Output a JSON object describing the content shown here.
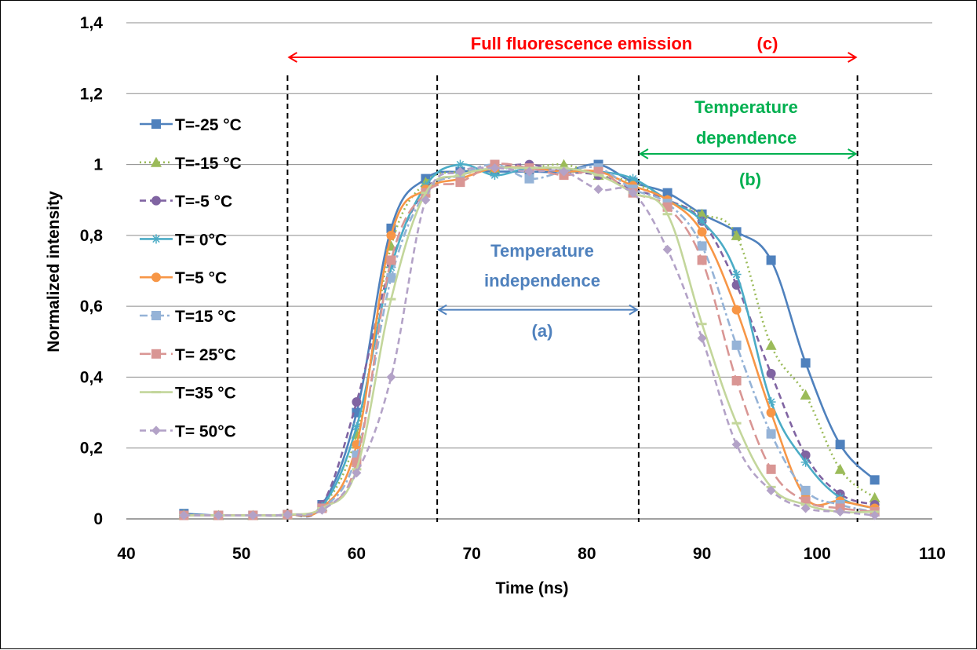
{
  "chart_data": {
    "type": "line",
    "title": "",
    "xlabel": "Time (ns)",
    "ylabel": "Normalized intensity",
    "xlim": [
      40,
      110
    ],
    "ylim": [
      0,
      1.4
    ],
    "x_ticks": [
      "40",
      "50",
      "60",
      "70",
      "80",
      "90",
      "100",
      "110"
    ],
    "y_ticks": [
      "0",
      "0,2",
      "0,4",
      "0,6",
      "0,8",
      "1",
      "1,2",
      "1,4"
    ],
    "grid": "horizontal",
    "legend_position": "left",
    "x": [
      45,
      48,
      51,
      54,
      57,
      60,
      63,
      66,
      69,
      72,
      75,
      78,
      81,
      84,
      87,
      90,
      93,
      96,
      99,
      102,
      105
    ],
    "series": [
      {
        "name": "T=-25 °C",
        "color": "#4F81BD",
        "marker": "square",
        "dash": "solid",
        "values": [
          0.015,
          0.01,
          0.01,
          0.012,
          0.04,
          0.3,
          0.82,
          0.96,
          0.98,
          0.98,
          0.98,
          0.98,
          1.0,
          0.95,
          0.92,
          0.86,
          0.81,
          0.73,
          0.44,
          0.21,
          0.11
        ]
      },
      {
        "name": "T=-15 °C",
        "color": "#9BBB59",
        "marker": "triangle",
        "dash": "dot",
        "values": [
          0.012,
          0.01,
          0.01,
          0.012,
          0.035,
          0.24,
          0.77,
          0.95,
          0.98,
          0.99,
          0.99,
          1.0,
          0.97,
          0.95,
          0.9,
          0.86,
          0.8,
          0.49,
          0.35,
          0.14,
          0.06
        ]
      },
      {
        "name": "T=-5 °C",
        "color": "#8064A2",
        "marker": "circle",
        "dash": "dash",
        "values": [
          0.01,
          0.01,
          0.01,
          0.012,
          0.04,
          0.33,
          0.72,
          0.93,
          0.97,
          0.99,
          1.0,
          0.98,
          0.97,
          0.93,
          0.9,
          0.84,
          0.66,
          0.41,
          0.18,
          0.07,
          0.04
        ]
      },
      {
        "name": "T= 0°C",
        "color": "#4BACC6",
        "marker": "star",
        "dash": "solid",
        "values": [
          0.01,
          0.01,
          0.01,
          0.012,
          0.035,
          0.26,
          0.71,
          0.94,
          1.0,
          0.97,
          0.99,
          0.98,
          0.98,
          0.96,
          0.9,
          0.84,
          0.69,
          0.33,
          0.16,
          0.06,
          0.03
        ]
      },
      {
        "name": "T=5 °C",
        "color": "#F79646",
        "marker": "circle",
        "dash": "solid",
        "values": [
          0.01,
          0.01,
          0.01,
          0.012,
          0.03,
          0.21,
          0.8,
          0.93,
          0.96,
          0.99,
          0.99,
          0.98,
          0.98,
          0.94,
          0.9,
          0.81,
          0.59,
          0.3,
          0.06,
          0.05,
          0.03
        ]
      },
      {
        "name": "T=15 °C",
        "color": "#95B3D7",
        "marker": "square",
        "dash": "dashdot",
        "values": [
          0.01,
          0.01,
          0.01,
          0.012,
          0.03,
          0.18,
          0.68,
          0.92,
          0.97,
          1.0,
          0.96,
          0.98,
          0.99,
          0.93,
          0.89,
          0.77,
          0.49,
          0.24,
          0.08,
          0.04,
          0.02
        ]
      },
      {
        "name": "T= 25°C",
        "color": "#D99694",
        "marker": "square",
        "dash": "longdash",
        "values": [
          0.01,
          0.01,
          0.01,
          0.012,
          0.03,
          0.16,
          0.73,
          0.92,
          0.95,
          1.0,
          0.99,
          0.97,
          0.98,
          0.92,
          0.88,
          0.73,
          0.39,
          0.14,
          0.05,
          0.03,
          0.02
        ]
      },
      {
        "name": "T=35 °C",
        "color": "#C3D69B",
        "marker": "dash",
        "dash": "solid",
        "values": [
          0.01,
          0.01,
          0.01,
          0.012,
          0.03,
          0.14,
          0.62,
          0.92,
          0.97,
          0.99,
          0.99,
          0.99,
          0.97,
          0.92,
          0.86,
          0.55,
          0.27,
          0.09,
          0.04,
          0.02,
          0.02
        ]
      },
      {
        "name": "T= 50°C",
        "color": "#B3A2C7",
        "marker": "diamond",
        "dash": "dash",
        "values": [
          0.01,
          0.01,
          0.01,
          0.012,
          0.025,
          0.13,
          0.4,
          0.9,
          0.98,
          0.99,
          0.98,
          0.98,
          0.93,
          0.92,
          0.76,
          0.51,
          0.21,
          0.08,
          0.03,
          0.02,
          0.01
        ]
      }
    ],
    "vlines": [
      54,
      67,
      84.5,
      103.5
    ],
    "annotations": [
      {
        "id": "full",
        "text": "Full fluorescence emission",
        "label": "(c)",
        "color": "#FF0000",
        "x_from": 54,
        "x_to": 103.5,
        "y": 1.3
      },
      {
        "id": "dep",
        "text1": "Temperature",
        "text2": "dependence",
        "label": "(b)",
        "color": "#00B050",
        "x_from": 84.5,
        "x_to": 103.5,
        "y": 1.03
      },
      {
        "id": "indep",
        "text1": "Temperature",
        "text2": "independence",
        "label": "(a)",
        "color": "#4F81BD",
        "x_from": 67,
        "x_to": 84.5,
        "y": 0.59
      }
    ]
  }
}
